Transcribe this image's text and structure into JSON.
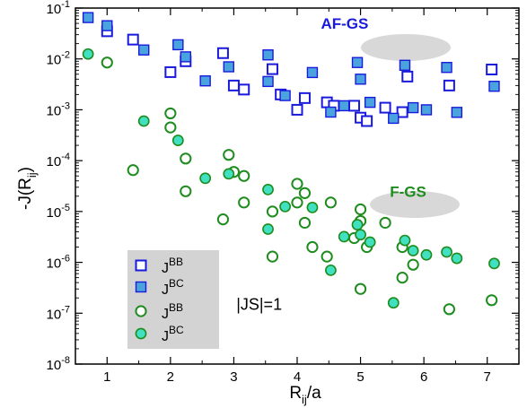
{
  "chart_data": {
    "type": "scatter",
    "title": "",
    "xlabel": "R_ij/a",
    "ylabel": "-J(R_ij)",
    "xlim": [
      0.5,
      7.5
    ],
    "ylim_exponents": [
      -8,
      -1
    ],
    "y_scale": "log",
    "grid": false,
    "x_ticks": [
      "1",
      "2",
      "3",
      "4",
      "5",
      "6",
      "7"
    ],
    "y_ticks": [
      {
        "base": "10",
        "exp": "-8"
      },
      {
        "base": "10",
        "exp": "-7"
      },
      {
        "base": "10",
        "exp": "-6"
      },
      {
        "base": "10",
        "exp": "-5"
      },
      {
        "base": "10",
        "exp": "-4"
      },
      {
        "base": "10",
        "exp": "-3"
      },
      {
        "base": "10",
        "exp": "-2"
      },
      {
        "base": "10",
        "exp": "-1"
      }
    ],
    "legend": {
      "placement": "bottom-left",
      "entries": [
        {
          "base": "J",
          "sup": "BB",
          "series": 0
        },
        {
          "base": "J",
          "sup": "BC",
          "series": 1
        },
        {
          "base": "J",
          "sup": "BB",
          "series": 2
        },
        {
          "base": "J",
          "sup": "BC",
          "series": 3
        }
      ]
    },
    "annotations": [
      {
        "text": "AF-GS",
        "color": "#1a1adc",
        "x": 4.75,
        "y": 0.05
      },
      {
        "text": "F-GS",
        "color": "#1e8c1e",
        "x": 5.75,
        "y": 2.5e-05
      },
      {
        "text": "|JS|=1",
        "x": 3.4,
        "y": 1.5e-07
      }
    ],
    "colors": {
      "af_edge": "#1a1adc",
      "af_fill": "#4aa3df",
      "f_edge": "#1e8c1e",
      "f_fill": "#40e0c0",
      "bubble": "#d8d8d8",
      "legend_bg": "#d3d3d3"
    },
    "series": [
      {
        "marker": "square-open",
        "x": [
          1.0,
          1.41,
          2.0,
          2.24,
          2.83,
          3.0,
          3.16,
          3.61,
          3.74,
          4.0,
          4.12,
          4.47,
          4.58,
          4.9,
          5.0,
          5.1,
          5.39,
          5.66,
          5.74,
          6.4,
          7.07
        ],
        "y": [
          0.035,
          0.024,
          0.0055,
          0.009,
          0.013,
          0.003,
          0.0025,
          0.0063,
          0.002,
          0.001,
          0.0017,
          0.0014,
          0.0012,
          0.0012,
          0.0007,
          0.0006,
          0.0011,
          0.0009,
          0.0045,
          0.003,
          0.0062
        ]
      },
      {
        "marker": "square-filled",
        "x": [
          0.7,
          1.0,
          1.58,
          2.12,
          2.24,
          2.55,
          2.92,
          3.54,
          3.54,
          3.81,
          4.24,
          4.53,
          4.74,
          4.95,
          5.0,
          5.15,
          5.52,
          5.7,
          5.83,
          6.04,
          6.36,
          6.52,
          7.11
        ],
        "y": [
          0.065,
          0.045,
          0.015,
          0.019,
          0.011,
          0.0037,
          0.007,
          0.012,
          0.0036,
          0.0019,
          0.0054,
          0.0009,
          0.0012,
          0.0085,
          0.004,
          0.0014,
          0.00068,
          0.0075,
          0.0011,
          0.001,
          0.0068,
          0.00089,
          0.0029
        ]
      },
      {
        "marker": "circle-open",
        "x": [
          1.0,
          1.41,
          2.0,
          2.0,
          2.24,
          2.24,
          2.83,
          2.92,
          3.0,
          3.16,
          3.16,
          3.61,
          3.61,
          4.0,
          4.0,
          4.12,
          4.12,
          4.24,
          4.47,
          4.53,
          4.9,
          5.0,
          5.0,
          5.0,
          5.1,
          5.39,
          5.66,
          5.66,
          5.83,
          6.4,
          7.07
        ],
        "y": [
          0.0085,
          6.5e-05,
          0.00085,
          0.00045,
          0.00011,
          2.5e-05,
          7e-06,
          0.00013,
          6e-05,
          5e-05,
          1.5e-05,
          1e-05,
          1.3e-06,
          3.5e-05,
          1.5e-05,
          2.3e-05,
          6e-06,
          2e-06,
          1.3e-06,
          1.5e-05,
          3e-06,
          1.1e-05,
          6.5e-06,
          3e-07,
          2e-06,
          6e-06,
          2e-06,
          5e-07,
          9e-07,
          1.2e-07,
          1.8e-07
        ]
      },
      {
        "marker": "circle-filled",
        "x": [
          0.7,
          1.58,
          2.12,
          2.55,
          2.92,
          3.54,
          3.54,
          3.81,
          4.24,
          4.53,
          4.74,
          4.95,
          5.0,
          5.15,
          5.52,
          5.7,
          5.83,
          6.04,
          6.36,
          6.52,
          7.11
        ],
        "y": [
          0.0125,
          0.0006,
          0.00025,
          4.5e-05,
          5.5e-05,
          2.7e-05,
          4.5e-06,
          1.25e-05,
          1.2e-05,
          7e-07,
          3.2e-06,
          5.5e-06,
          3.5e-06,
          2.5e-06,
          1.6e-07,
          2.7e-06,
          1.7e-06,
          1.4e-06,
          1.6e-06,
          1.2e-06,
          9.5e-07
        ]
      }
    ]
  }
}
